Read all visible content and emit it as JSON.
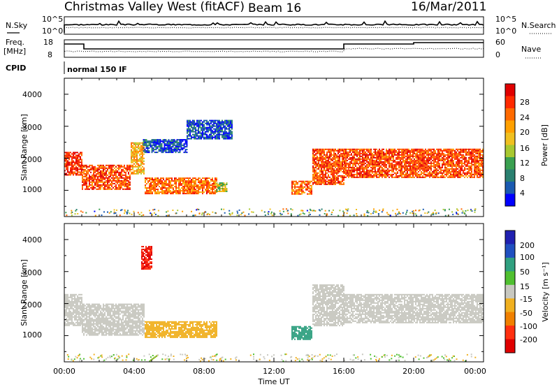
{
  "header": {
    "station": "Christmas Valley West (fitACF)",
    "beam": "Beam 16",
    "date": "16/Mar/2011"
  },
  "panels": {
    "nsky_label": "N.Sky",
    "nsearch_label": "N.Search",
    "freq_label_1": "Freq.",
    "freq_label_2": "[MHz]",
    "nave_label": "Nave",
    "cpid_label": "CPID",
    "cpid_value": "normal 150 IF",
    "noise_ticks_left": [
      "10^5",
      "10^0"
    ],
    "noise_ticks_right": [
      "10^5",
      "10^0"
    ],
    "freq_ticks": [
      "18",
      "8"
    ],
    "nave_ticks": [
      "60",
      "0"
    ]
  },
  "axes": {
    "ylabel": "Slant Range [km]",
    "xlabel": "Time UT",
    "yticks": [
      "4000",
      "3000",
      "2000",
      "1000"
    ],
    "xticks": [
      "00:00",
      "04:00",
      "08:00",
      "12:00",
      "16:00",
      "20:00",
      "00:00"
    ]
  },
  "colorbars": {
    "power": {
      "label": "Power [dB]",
      "ticks": [
        "28",
        "24",
        "20",
        "16",
        "12",
        "8",
        "4"
      ],
      "colors": [
        "#e00000",
        "#ff2a00",
        "#ff6a00",
        "#ffa000",
        "#f0c020",
        "#a8c830",
        "#3aa050",
        "#2a8070",
        "#1a5ab0",
        "#0000ff"
      ]
    },
    "velocity": {
      "label": "Velocity [m s⁻¹]",
      "ticks": [
        "200",
        "100",
        "50",
        "15",
        "-15",
        "-50",
        "-100",
        "-200"
      ],
      "colors": [
        "#2020b0",
        "#2050c0",
        "#30a080",
        "#50c030",
        "#c8c8c0",
        "#f0b020",
        "#f08000",
        "#ff3010",
        "#e00000"
      ]
    }
  },
  "chart_data": [
    {
      "type": "heatmap",
      "name": "Power",
      "x_range_hours": [
        0,
        24
      ],
      "ylim": [
        180,
        4500
      ],
      "regions": [
        {
          "t0": 0.0,
          "t1": 1.0,
          "r0": 1500,
          "r1": 2200,
          "value": 28
        },
        {
          "t0": 1.0,
          "t1": 3.8,
          "r0": 1050,
          "r1": 1800,
          "value": 26
        },
        {
          "t0": 3.8,
          "t1": 4.6,
          "r0": 1500,
          "r1": 2500,
          "value": 20
        },
        {
          "t0": 4.6,
          "t1": 8.7,
          "r0": 900,
          "r1": 1400,
          "value": 24
        },
        {
          "t0": 8.7,
          "t1": 9.3,
          "r0": 950,
          "r1": 1250,
          "value": 16
        },
        {
          "t0": 4.5,
          "t1": 7.0,
          "r0": 2200,
          "r1": 2600,
          "value": 6
        },
        {
          "t0": 7.0,
          "t1": 9.6,
          "r0": 2600,
          "r1": 3200,
          "value": 6
        },
        {
          "t0": 13.0,
          "t1": 14.2,
          "r0": 900,
          "r1": 1300,
          "value": 24
        },
        {
          "t0": 14.2,
          "t1": 16.0,
          "r0": 1200,
          "r1": 2300,
          "value": 26
        },
        {
          "t0": 16.0,
          "t1": 24.0,
          "r0": 1400,
          "r1": 2300,
          "value": 26
        }
      ]
    },
    {
      "type": "heatmap",
      "name": "Velocity",
      "x_range_hours": [
        0,
        24
      ],
      "ylim": [
        180,
        4500
      ],
      "regions": [
        {
          "t0": 0.0,
          "t1": 1.0,
          "r0": 1300,
          "r1": 2300,
          "value": 0
        },
        {
          "t0": 1.0,
          "t1": 4.6,
          "r0": 1000,
          "r1": 2000,
          "value": 0
        },
        {
          "t0": 4.6,
          "t1": 8.7,
          "r0": 950,
          "r1": 1450,
          "value": -40
        },
        {
          "t0": 4.4,
          "t1": 5.0,
          "r0": 3100,
          "r1": 3800,
          "value": -200
        },
        {
          "t0": 13.0,
          "t1": 14.2,
          "r0": 900,
          "r1": 1300,
          "value": 60
        },
        {
          "t0": 14.2,
          "t1": 16.0,
          "r0": 1300,
          "r1": 2600,
          "value": 0
        },
        {
          "t0": 16.0,
          "t1": 24.0,
          "r0": 1400,
          "r1": 2300,
          "value": 0
        }
      ]
    }
  ]
}
